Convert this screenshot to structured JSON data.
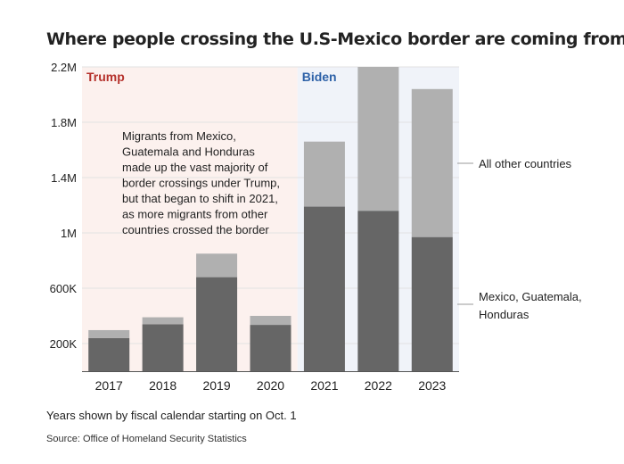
{
  "chart_data": {
    "type": "bar",
    "stacked": true,
    "title": "Where people crossing the U.S-Mexico border are coming from",
    "categories": [
      "2017",
      "2018",
      "2019",
      "2020",
      "2021",
      "2022",
      "2023"
    ],
    "series": [
      {
        "name": "Mexico, Guatemala, Honduras",
        "color": "#666666",
        "values": [
          240000,
          340000,
          680000,
          335000,
          1190000,
          1160000,
          970000
        ]
      },
      {
        "name": "All other countries",
        "color": "#b0b0b0",
        "values": [
          57000,
          50000,
          170000,
          65000,
          470000,
          1040000,
          1070000
        ]
      }
    ],
    "ylim": [
      0,
      2200000
    ],
    "yticks": [
      {
        "value": 200000,
        "label": "200K"
      },
      {
        "value": 600000,
        "label": "600K"
      },
      {
        "value": 1000000,
        "label": "1M"
      },
      {
        "value": 1400000,
        "label": "1.4M"
      },
      {
        "value": 1800000,
        "label": "1.8M"
      },
      {
        "value": 2200000,
        "label": "2.2M"
      }
    ],
    "grid": true,
    "legend": "right, direct labels",
    "periods": [
      {
        "label": "Trump",
        "from": "2017",
        "to": "2020",
        "label_color": "#b5312b",
        "bg_color": "#fcf1ee"
      },
      {
        "label": "Biden",
        "from": "2021",
        "to": "2023",
        "label_color": "#2e62a8",
        "bg_color": "#f0f3f9"
      }
    ],
    "annotation": [
      "Migrants from Mexico,",
      "Guatemala and Honduras",
      "made up the vast majority of",
      "border crossings under Trump,",
      "but that began to shift in 2021,",
      "as more migrants from other",
      "countries crossed the border"
    ],
    "legend_labels": {
      "other": "All other countries",
      "mgh": [
        "Mexico, Guatemala,",
        "Honduras"
      ]
    }
  },
  "notes": {
    "fiscal": "Years shown by fiscal calendar starting on Oct. 1",
    "source": "Source: Office of Homeland Security Statistics"
  }
}
